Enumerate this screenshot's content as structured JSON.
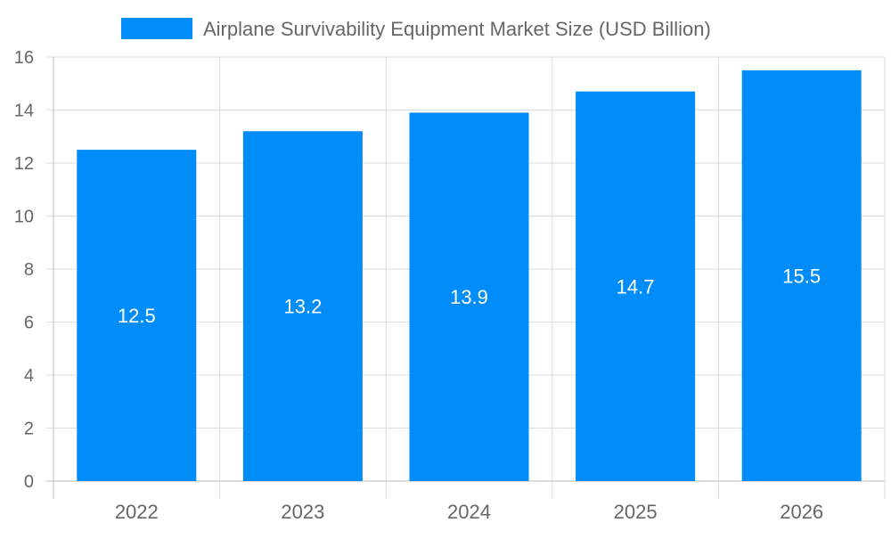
{
  "chart_data": {
    "type": "bar",
    "title": "",
    "xlabel": "",
    "ylabel": "",
    "categories": [
      "2022",
      "2023",
      "2024",
      "2025",
      "2026"
    ],
    "series": [
      {
        "name": "Airplane Survivability Equipment Market Size (USD Billion)",
        "values": [
          12.5,
          13.2,
          13.9,
          14.7,
          15.5
        ],
        "color": "#008cf9"
      }
    ],
    "data_labels": [
      "12.5",
      "13.2",
      "13.9",
      "14.7",
      "15.5"
    ],
    "ylim": [
      0,
      16
    ],
    "yticks": [
      "0",
      "2",
      "4",
      "6",
      "8",
      "10",
      "12",
      "14",
      "16"
    ],
    "grid": true,
    "legend_position": "top-center"
  }
}
